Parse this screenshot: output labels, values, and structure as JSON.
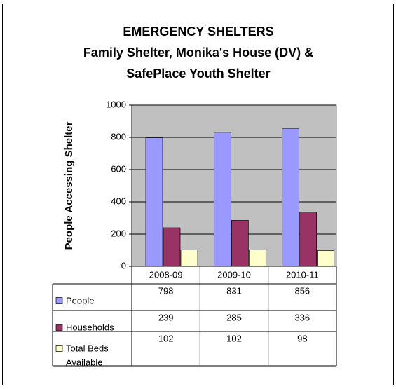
{
  "chart_data": {
    "type": "bar",
    "title": [
      "EMERGENCY SHELTERS",
      "Family Shelter, Monika's House (DV) &",
      "SafePlace Youth Shelter"
    ],
    "y_label": "People Accessing Shelter",
    "categories": [
      "2008-09",
      "2009-10",
      "2010-11"
    ],
    "series": [
      {
        "name": "People",
        "color": "#9999ff",
        "values": [
          798,
          831,
          856
        ]
      },
      {
        "name": "Households",
        "color": "#993366",
        "values": [
          239,
          285,
          336
        ]
      },
      {
        "name": [
          "Total Beds",
          "Available"
        ],
        "color": "#ffffcc",
        "values": [
          102,
          102,
          98
        ]
      }
    ],
    "ylim": [
      0,
      1000
    ],
    "yticks": [
      0,
      200,
      400,
      600,
      800,
      1000
    ],
    "grid": true
  }
}
